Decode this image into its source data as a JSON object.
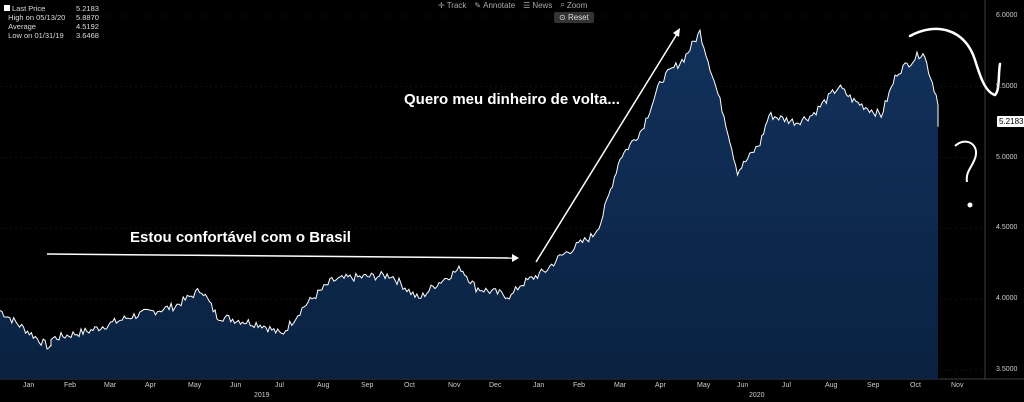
{
  "toolbar": {
    "track": "Track",
    "annotate": "Annotate",
    "news": "News",
    "zoom": "Zoom",
    "reset": "Reset"
  },
  "legend": {
    "last_price_label": "Last Price",
    "last_price_value": "5.2183",
    "high_label": "High on 05/13/20",
    "high_value": "5.8870",
    "avg_label": "Average",
    "avg_value": "4.5192",
    "low_label": "Low on 01/31/19",
    "low_value": "3.6468"
  },
  "annotations": {
    "comfortable": "Estou confortável com o Brasil",
    "money_back": "Quero meu dinheiro de volta...",
    "question_mark": "?"
  },
  "last_value_badge": "5.2183",
  "colors": {
    "line": "#ffffff",
    "fill": "#0b2344",
    "background": "#000000",
    "annotation": "#ffffff"
  },
  "chart_data": {
    "type": "area",
    "x_unit": "month",
    "x_tick_labels": [
      "Jan",
      "Feb",
      "Mar",
      "Apr",
      "May",
      "Jun",
      "Jul",
      "Aug",
      "Sep",
      "Oct",
      "Nov",
      "Dec",
      "Jan",
      "Feb",
      "Mar",
      "Apr",
      "May",
      "Jun",
      "Jul",
      "Aug",
      "Sep",
      "Oct",
      "Nov"
    ],
    "year_labels": [
      "2019",
      "2020"
    ],
    "y_ticks": [
      "3.5000",
      "4.0000",
      "4.5000",
      "5.0000",
      "5.5000",
      "6.0000"
    ],
    "ylim": [
      3.5,
      6.0
    ],
    "series": [
      {
        "values_by_month_start": [
          [
            "2019-01",
            3.92
          ],
          [
            "2019-01-31",
            3.65
          ],
          [
            "2019-02",
            3.72
          ],
          [
            "2019-03",
            3.78
          ],
          [
            "2019-04",
            3.88
          ],
          [
            "2019-05",
            3.95
          ],
          [
            "2019-05-20",
            4.07
          ],
          [
            "2019-06",
            3.88
          ],
          [
            "2019-07",
            3.82
          ],
          [
            "2019-07-15",
            3.75
          ],
          [
            "2019-08",
            3.95
          ],
          [
            "2019-08-20",
            4.13
          ],
          [
            "2019-09",
            4.15
          ],
          [
            "2019-10",
            4.17
          ],
          [
            "2019-10-20",
            4.0
          ],
          [
            "2019-11",
            4.1
          ],
          [
            "2019-11-20",
            4.22
          ],
          [
            "2019-12",
            4.08
          ],
          [
            "2019-12-25",
            4.02
          ],
          [
            "2020-01",
            4.1
          ],
          [
            "2020-01-20",
            4.2
          ],
          [
            "2020-02",
            4.3
          ],
          [
            "2020-02-25",
            4.45
          ],
          [
            "2020-03",
            4.55
          ],
          [
            "2020-03-15",
            5.0
          ],
          [
            "2020-04",
            5.2
          ],
          [
            "2020-04-15",
            5.55
          ],
          [
            "2020-05",
            5.7
          ],
          [
            "2020-05-13",
            5.887
          ],
          [
            "2020-06",
            5.3
          ],
          [
            "2020-06-10",
            4.9
          ],
          [
            "2020-06-25",
            5.1
          ],
          [
            "2020-07",
            5.3
          ],
          [
            "2020-07-20",
            5.25
          ],
          [
            "2020-08",
            5.3
          ],
          [
            "2020-08-20",
            5.5
          ],
          [
            "2020-09",
            5.4
          ],
          [
            "2020-09-20",
            5.3
          ],
          [
            "2020-10",
            5.6
          ],
          [
            "2020-10-20",
            5.75
          ],
          [
            "2020-11",
            5.4
          ],
          [
            "2020-11-20",
            5.3
          ],
          [
            "2020-11-30",
            5.2183
          ]
        ]
      }
    ]
  }
}
